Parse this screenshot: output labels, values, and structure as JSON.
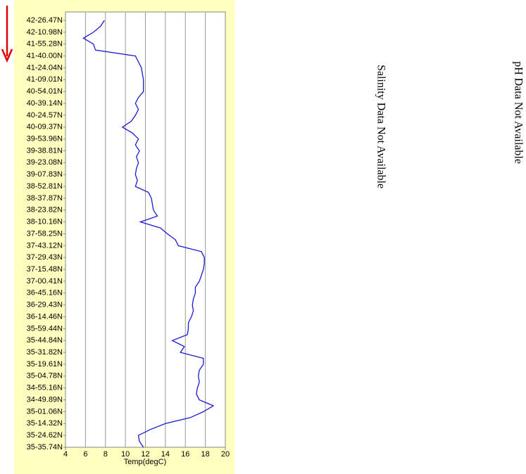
{
  "chart_data": {
    "type": "line",
    "orientation": "horizontal",
    "x_label": "Temp(degC)",
    "categories": [
      "42-26.47N",
      null,
      "42-10.98N",
      null,
      "41-55.28N",
      null,
      "41-40.00N",
      null,
      "41-24.04N",
      null,
      "41-09.01N",
      null,
      "40-54.01N",
      null,
      "40-39.14N",
      null,
      "40-24.57N",
      null,
      "40-09.37N",
      null,
      "39-53.96N",
      null,
      "39-38.81N",
      null,
      "39-23.08N",
      null,
      "39-07.83N",
      null,
      "38-52.81N",
      null,
      "38-37.87N",
      null,
      "38-23.82N",
      null,
      "38-10.16N",
      null,
      "37-58.25N",
      null,
      "37-43.12N",
      null,
      "37-29.43N",
      null,
      "37-15.48N",
      null,
      "37-00.41N",
      null,
      "36-45.16N",
      null,
      "36-29.43N",
      null,
      "36-14.46N",
      null,
      "35-59.44N",
      null,
      "35-44.84N",
      null,
      "35-31.82N",
      null,
      "35-19.61N",
      null,
      "35-04.78N",
      null,
      "34-55.16N",
      null,
      "34-49.89N",
      null,
      "35-01.06N",
      null,
      "35-14.32N",
      null,
      "35-24.62N",
      null,
      "35-35.74N"
    ],
    "values": [
      7.9,
      7.5,
      6.8,
      5.8,
      6.8,
      7.0,
      11.0,
      11.3,
      11.6,
      11.7,
      11.8,
      11.8,
      11.8,
      11.3,
      11.0,
      11.3,
      11.0,
      10.6,
      9.7,
      10.7,
      11.3,
      11.0,
      11.4,
      11.1,
      11.3,
      11.1,
      11.0,
      11.2,
      11.0,
      12.3,
      12.6,
      12.7,
      12.8,
      13.2,
      11.5,
      13.5,
      14.2,
      15.0,
      15.3,
      17.6,
      17.9,
      17.9,
      17.8,
      17.6,
      17.4,
      17.0,
      17.0,
      16.8,
      16.7,
      16.8,
      16.6,
      16.3,
      16.3,
      16.2,
      14.7,
      15.9,
      15.5,
      17.8,
      17.8,
      17.4,
      17.3,
      17.4,
      17.2,
      17.1,
      17.4,
      18.8,
      17.8,
      16.5,
      14.0,
      12.5,
      11.3,
      11.4,
      11.8
    ],
    "color": "#1a1ad6",
    "xlim": [
      4,
      20
    ],
    "xticks": [
      4,
      6,
      8,
      10,
      12,
      14,
      16,
      18,
      20
    ],
    "grid": true,
    "annotations": [
      "Salinity Data Not Available",
      "pH Data Not Available"
    ]
  }
}
